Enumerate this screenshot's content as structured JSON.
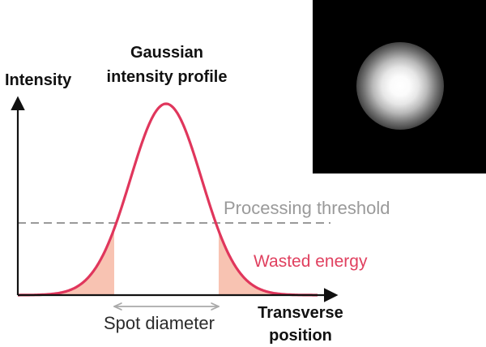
{
  "title": "Gaussian\nintensity profile",
  "y_axis_label": "Intensity",
  "x_axis_label": "Transverse\nposition",
  "threshold_label": "Processing threshold",
  "wasted_label": "Wasted energy",
  "spot_label": "Spot diameter",
  "colors": {
    "curve": "#e0365c",
    "wasted_fill": "#f8c3b2",
    "threshold_line": "#9a9a9a",
    "spot_arrow": "#a9a9a9",
    "axis": "#111111"
  },
  "inset_image": "beam-spot-image"
}
